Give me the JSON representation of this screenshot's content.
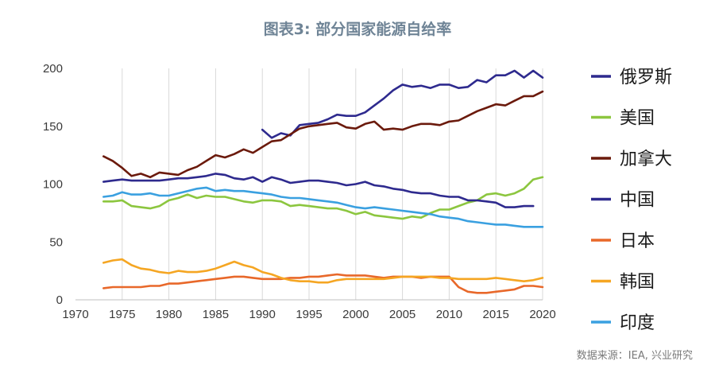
{
  "header": {
    "title": "图表3: 部分国家能源自给率",
    "source": "数据来源：IEA, 兴业研究"
  },
  "chart_data": {
    "type": "line",
    "title": "图表3: 部分国家能源自给率",
    "xlabel": "",
    "ylabel": "",
    "xlim": [
      1970,
      2020
    ],
    "ylim": [
      0,
      200
    ],
    "x_ticks": [
      "1970",
      "1975",
      "1980",
      "1985",
      "1990",
      "1995",
      "2000",
      "2005",
      "2010",
      "2015",
      "2020"
    ],
    "y_ticks": [
      "0",
      "50",
      "100",
      "150",
      "200"
    ],
    "grid": "vertical",
    "legend_position": "right",
    "series": [
      {
        "name": "俄罗斯",
        "color": "#2e2a8e",
        "x": [
          1990,
          1991,
          1992,
          1993,
          1994,
          1995,
          1996,
          1997,
          1998,
          1999,
          2000,
          2001,
          2002,
          2003,
          2004,
          2005,
          2006,
          2007,
          2008,
          2009,
          2010,
          2011,
          2012,
          2013,
          2014,
          2015,
          2016,
          2017,
          2018,
          2019,
          2020
        ],
        "values": [
          147,
          140,
          144,
          142,
          151,
          152,
          153,
          156,
          160,
          159,
          159,
          162,
          168,
          174,
          181,
          186,
          184,
          185,
          183,
          186,
          186,
          183,
          184,
          190,
          188,
          194,
          194,
          198,
          192,
          198,
          192
        ]
      },
      {
        "name": "美国",
        "color": "#8cc63f",
        "x": [
          1973,
          1974,
          1975,
          1976,
          1977,
          1978,
          1979,
          1980,
          1981,
          1982,
          1983,
          1984,
          1985,
          1986,
          1987,
          1988,
          1989,
          1990,
          1991,
          1992,
          1993,
          1994,
          1995,
          1996,
          1997,
          1998,
          1999,
          2000,
          2001,
          2002,
          2003,
          2004,
          2005,
          2006,
          2007,
          2008,
          2009,
          2010,
          2011,
          2012,
          2013,
          2014,
          2015,
          2016,
          2017,
          2018,
          2019,
          2020
        ],
        "values": [
          85,
          85,
          86,
          81,
          80,
          79,
          81,
          86,
          88,
          91,
          88,
          90,
          89,
          89,
          87,
          85,
          84,
          86,
          86,
          85,
          81,
          82,
          81,
          80,
          79,
          79,
          77,
          74,
          76,
          73,
          72,
          71,
          70,
          72,
          71,
          75,
          78,
          78,
          81,
          84,
          86,
          91,
          92,
          90,
          92,
          96,
          104,
          106
        ]
      },
      {
        "name": "加拿大",
        "color": "#6b1a0c",
        "x": [
          1973,
          1974,
          1975,
          1976,
          1977,
          1978,
          1979,
          1980,
          1981,
          1982,
          1983,
          1984,
          1985,
          1986,
          1987,
          1988,
          1989,
          1990,
          1991,
          1992,
          1993,
          1994,
          1995,
          1996,
          1997,
          1998,
          1999,
          2000,
          2001,
          2002,
          2003,
          2004,
          2005,
          2006,
          2007,
          2008,
          2009,
          2010,
          2011,
          2012,
          2013,
          2014,
          2015,
          2016,
          2017,
          2018,
          2019,
          2020
        ],
        "values": [
          124,
          120,
          114,
          107,
          109,
          106,
          110,
          109,
          108,
          112,
          115,
          120,
          125,
          123,
          126,
          130,
          127,
          132,
          137,
          138,
          143,
          148,
          150,
          151,
          152,
          153,
          149,
          148,
          152,
          154,
          147,
          148,
          147,
          150,
          152,
          152,
          151,
          154,
          155,
          159,
          163,
          166,
          169,
          168,
          172,
          176,
          176,
          180
        ]
      },
      {
        "name": "中国",
        "color": "#2e2a8e",
        "x": [
          1973,
          1974,
          1975,
          1976,
          1977,
          1978,
          1979,
          1980,
          1981,
          1982,
          1983,
          1984,
          1985,
          1986,
          1987,
          1988,
          1989,
          1990,
          1991,
          1992,
          1993,
          1994,
          1995,
          1996,
          1997,
          1998,
          1999,
          2000,
          2001,
          2002,
          2003,
          2004,
          2005,
          2006,
          2007,
          2008,
          2009,
          2010,
          2011,
          2012,
          2013,
          2014,
          2015,
          2016,
          2017,
          2018,
          2019
        ],
        "values": [
          102,
          103,
          104,
          103,
          103,
          103,
          103,
          104,
          105,
          105,
          106,
          107,
          109,
          108,
          105,
          104,
          106,
          102,
          106,
          104,
          101,
          102,
          103,
          103,
          102,
          101,
          99,
          100,
          102,
          99,
          98,
          96,
          95,
          93,
          92,
          92,
          90,
          89,
          89,
          86,
          86,
          85,
          84,
          80,
          80,
          81,
          81
        ]
      },
      {
        "name": "日本",
        "color": "#e8682a",
        "x": [
          1973,
          1974,
          1975,
          1976,
          1977,
          1978,
          1979,
          1980,
          1981,
          1982,
          1983,
          1984,
          1985,
          1986,
          1987,
          1988,
          1989,
          1990,
          1991,
          1992,
          1993,
          1994,
          1995,
          1996,
          1997,
          1998,
          1999,
          2000,
          2001,
          2002,
          2003,
          2004,
          2005,
          2006,
          2007,
          2008,
          2009,
          2010,
          2011,
          2012,
          2013,
          2014,
          2015,
          2016,
          2017,
          2018,
          2019,
          2020
        ],
        "values": [
          10,
          11,
          11,
          11,
          11,
          12,
          12,
          14,
          14,
          15,
          16,
          17,
          18,
          19,
          20,
          20,
          19,
          18,
          18,
          18,
          19,
          19,
          20,
          20,
          21,
          22,
          21,
          21,
          21,
          20,
          19,
          20,
          20,
          20,
          19,
          20,
          20,
          20,
          11,
          7,
          6,
          6,
          7,
          8,
          9,
          12,
          12,
          11
        ]
      },
      {
        "name": "韩国",
        "color": "#f5a623",
        "x": [
          1973,
          1974,
          1975,
          1976,
          1977,
          1978,
          1979,
          1980,
          1981,
          1982,
          1983,
          1984,
          1985,
          1986,
          1987,
          1988,
          1989,
          1990,
          1991,
          1992,
          1993,
          1994,
          1995,
          1996,
          1997,
          1998,
          1999,
          2000,
          2001,
          2002,
          2003,
          2004,
          2005,
          2006,
          2007,
          2008,
          2009,
          2010,
          2011,
          2012,
          2013,
          2014,
          2015,
          2016,
          2017,
          2018,
          2019,
          2020
        ],
        "values": [
          32,
          34,
          35,
          30,
          27,
          26,
          24,
          23,
          25,
          24,
          24,
          25,
          27,
          30,
          33,
          30,
          28,
          24,
          22,
          19,
          17,
          16,
          16,
          15,
          15,
          17,
          18,
          18,
          18,
          18,
          18,
          19,
          20,
          20,
          20,
          20,
          19,
          19,
          18,
          18,
          18,
          18,
          19,
          18,
          17,
          16,
          17,
          19
        ]
      },
      {
        "name": "印度",
        "color": "#3aa0e0",
        "x": [
          1973,
          1974,
          1975,
          1976,
          1977,
          1978,
          1979,
          1980,
          1981,
          1982,
          1983,
          1984,
          1985,
          1986,
          1987,
          1988,
          1989,
          1990,
          1991,
          1992,
          1993,
          1994,
          1995,
          1996,
          1997,
          1998,
          1999,
          2000,
          2001,
          2002,
          2003,
          2004,
          2005,
          2006,
          2007,
          2008,
          2009,
          2010,
          2011,
          2012,
          2013,
          2014,
          2015,
          2016,
          2017,
          2018,
          2019,
          2020
        ],
        "values": [
          89,
          90,
          93,
          91,
          91,
          92,
          90,
          90,
          92,
          94,
          96,
          97,
          94,
          95,
          94,
          94,
          93,
          92,
          91,
          89,
          88,
          88,
          87,
          86,
          85,
          84,
          82,
          80,
          79,
          80,
          79,
          78,
          77,
          76,
          75,
          74,
          72,
          71,
          70,
          68,
          67,
          66,
          65,
          65,
          64,
          63,
          63,
          63
        ]
      }
    ]
  }
}
